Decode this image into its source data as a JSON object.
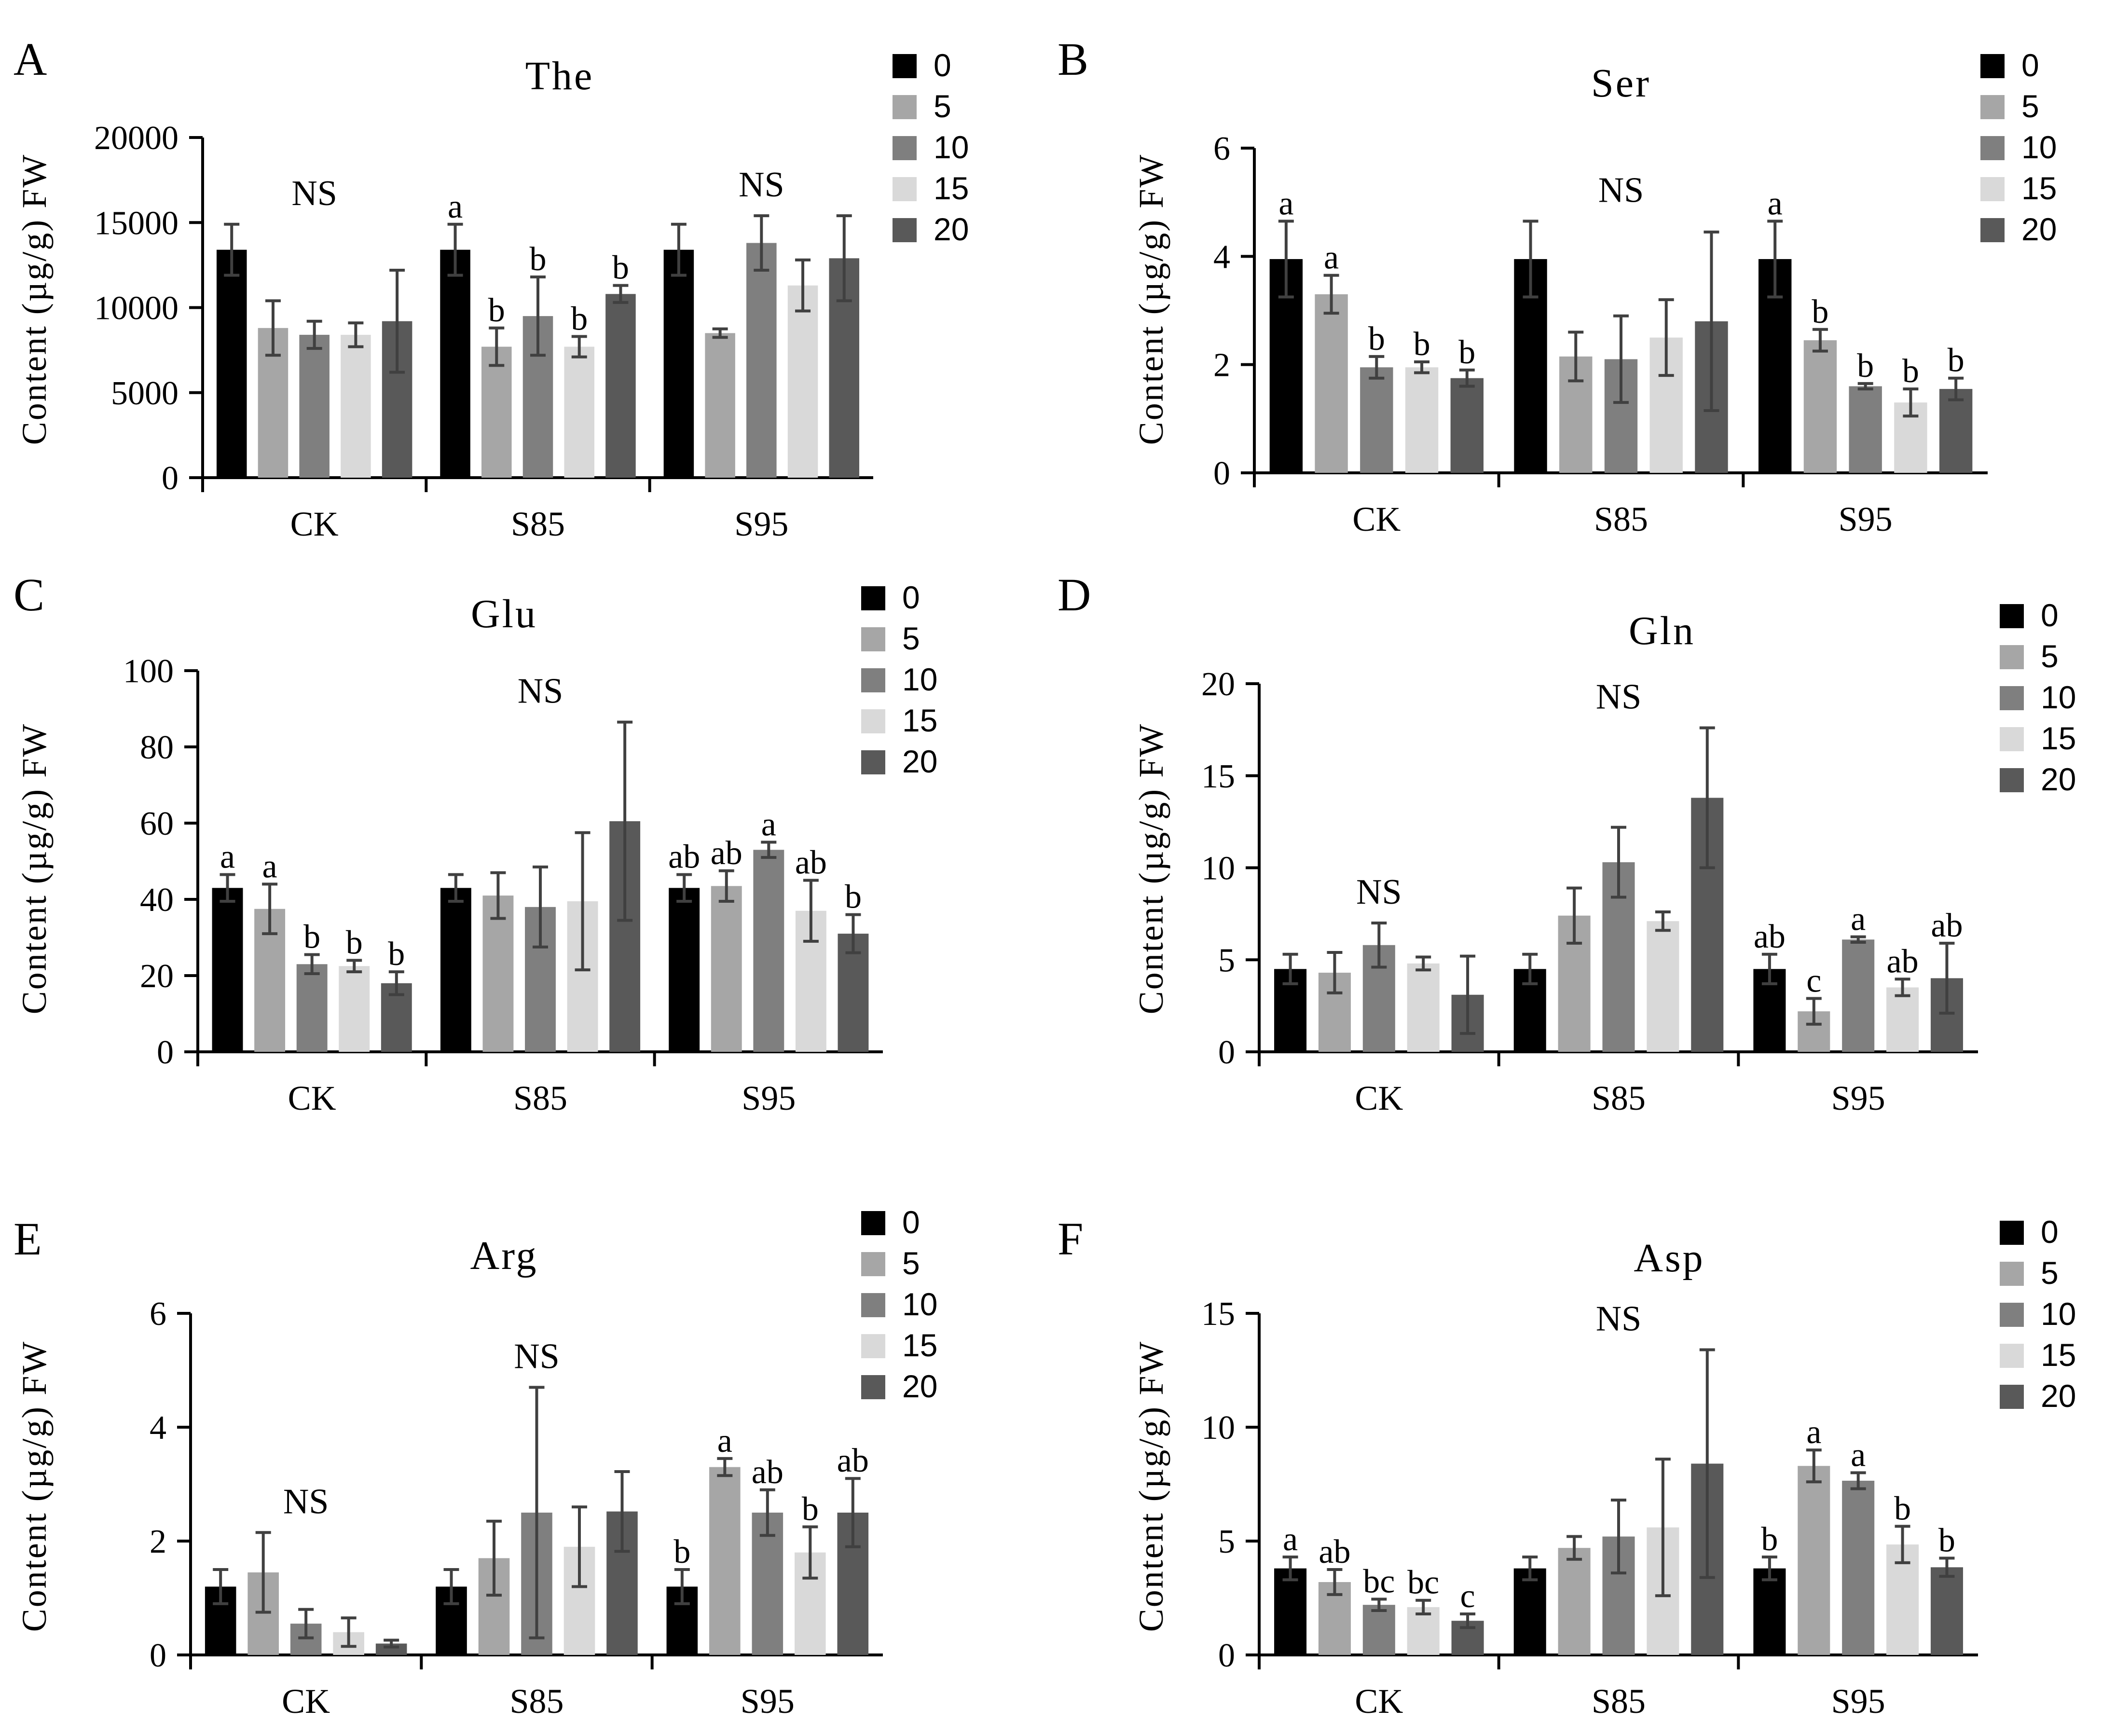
{
  "figure": {
    "group_labels": [
      "CK",
      "S85",
      "S95"
    ],
    "legend_labels": [
      "0",
      "5",
      "10",
      "15",
      "20"
    ],
    "series_colors": [
      "#000000",
      "#a6a6a6",
      "#7f7f7f",
      "#d9d9d9",
      "#595959"
    ],
    "error_bar_color": "#404040",
    "ylabel": "Content (µg/g) FW"
  },
  "chart_data": [
    {
      "panel": "A",
      "type": "bar",
      "title": "The",
      "ylabel": "Content (µg/g) FW",
      "ylim": [
        0,
        20000
      ],
      "yticks": [
        "0",
        "5000",
        "10000",
        "15000",
        "20000"
      ],
      "categories": [
        "CK",
        "S85",
        "S95"
      ],
      "series": [
        {
          "name": "0",
          "values": [
            13400,
            13400,
            13400
          ],
          "errors": [
            1500,
            1500,
            1500
          ]
        },
        {
          "name": "5",
          "values": [
            8800,
            7700,
            8500
          ],
          "errors": [
            1600,
            1100,
            250
          ]
        },
        {
          "name": "10",
          "values": [
            8400,
            9500,
            13800
          ],
          "errors": [
            800,
            2300,
            1600
          ]
        },
        {
          "name": "15",
          "values": [
            8400,
            7700,
            11300
          ],
          "errors": [
            700,
            600,
            1500
          ]
        },
        {
          "name": "20",
          "values": [
            9200,
            10800,
            12900
          ],
          "errors": [
            3000,
            500,
            2500
          ]
        }
      ],
      "labels": [
        [
          "",
          "",
          "",
          "",
          ""
        ],
        [
          "a",
          "b",
          "b",
          "b",
          "b"
        ],
        [
          "",
          "",
          "",
          "",
          ""
        ]
      ],
      "ns": [
        "NS",
        "",
        "NS"
      ]
    },
    {
      "panel": "B",
      "type": "bar",
      "title": "Ser",
      "ylabel": "Content (µg/g) FW",
      "ylim": [
        0,
        6
      ],
      "yticks": [
        "0",
        "2",
        "4",
        "6"
      ],
      "categories": [
        "CK",
        "S85",
        "S95"
      ],
      "series": [
        {
          "name": "0",
          "values": [
            3.95,
            3.95,
            3.95
          ],
          "errors": [
            0.7,
            0.7,
            0.7
          ]
        },
        {
          "name": "5",
          "values": [
            3.3,
            2.15,
            2.45
          ],
          "errors": [
            0.35,
            0.45,
            0.2
          ]
        },
        {
          "name": "10",
          "values": [
            1.95,
            2.1,
            1.6
          ],
          "errors": [
            0.2,
            0.8,
            0.05
          ]
        },
        {
          "name": "15",
          "values": [
            1.95,
            2.5,
            1.3
          ],
          "errors": [
            0.1,
            0.7,
            0.25
          ]
        },
        {
          "name": "20",
          "values": [
            1.75,
            2.8,
            1.55
          ],
          "errors": [
            0.15,
            1.65,
            0.2
          ]
        }
      ],
      "labels": [
        [
          "a",
          "a",
          "b",
          "b",
          "b"
        ],
        [
          "",
          "",
          "",
          "",
          ""
        ],
        [
          "a",
          "b",
          "b",
          "b",
          "b"
        ]
      ],
      "ns": [
        "",
        "NS",
        ""
      ]
    },
    {
      "panel": "C",
      "type": "bar",
      "title": "Glu",
      "ylabel": "Content (µg/g) FW",
      "ylim": [
        0,
        100
      ],
      "yticks": [
        "0",
        "20",
        "40",
        "60",
        "80",
        "100"
      ],
      "categories": [
        "CK",
        "S85",
        "S95"
      ],
      "series": [
        {
          "name": "0",
          "values": [
            43,
            43,
            43
          ],
          "errors": [
            3.5,
            3.5,
            3.5
          ]
        },
        {
          "name": "5",
          "values": [
            37.5,
            41,
            43.5
          ],
          "errors": [
            6.5,
            6,
            4
          ]
        },
        {
          "name": "10",
          "values": [
            23,
            38,
            53
          ],
          "errors": [
            2.5,
            10.5,
            2
          ]
        },
        {
          "name": "15",
          "values": [
            22.5,
            39.5,
            37
          ],
          "errors": [
            1.5,
            18,
            8
          ]
        },
        {
          "name": "20",
          "values": [
            18,
            60.5,
            31
          ],
          "errors": [
            3,
            26,
            5
          ]
        }
      ],
      "labels": [
        [
          "a",
          "a",
          "b",
          "b",
          "b"
        ],
        [
          "",
          "",
          "",
          "",
          ""
        ],
        [
          "ab",
          "ab",
          "a",
          "ab",
          "b"
        ]
      ],
      "ns": [
        "",
        "NS",
        ""
      ]
    },
    {
      "panel": "D",
      "type": "bar",
      "title": "Gln",
      "ylabel": "Content (µg/g) FW",
      "ylim": [
        0,
        20
      ],
      "yticks": [
        "0",
        "5",
        "10",
        "15",
        "20"
      ],
      "categories": [
        "CK",
        "S85",
        "S95"
      ],
      "series": [
        {
          "name": "0",
          "values": [
            4.5,
            4.5,
            4.5
          ],
          "errors": [
            0.8,
            0.8,
            0.8
          ]
        },
        {
          "name": "5",
          "values": [
            4.3,
            7.4,
            2.2
          ],
          "errors": [
            1.1,
            1.5,
            0.7
          ]
        },
        {
          "name": "10",
          "values": [
            5.8,
            10.3,
            6.1
          ],
          "errors": [
            1.2,
            1.9,
            0.15
          ]
        },
        {
          "name": "15",
          "values": [
            4.8,
            7.1,
            3.5
          ],
          "errors": [
            0.35,
            0.5,
            0.45
          ]
        },
        {
          "name": "20",
          "values": [
            3.1,
            13.8,
            4.0
          ],
          "errors": [
            2.1,
            3.8,
            1.9
          ]
        }
      ],
      "labels": [
        [
          "",
          "",
          "",
          "",
          ""
        ],
        [
          "",
          "",
          "",
          "",
          ""
        ],
        [
          "ab",
          "c",
          "a",
          "ab",
          "ab"
        ]
      ],
      "ns": [
        "NS",
        "NS",
        ""
      ]
    },
    {
      "panel": "E",
      "type": "bar",
      "title": "Arg",
      "ylabel": "Content (µg/g) FW",
      "ylim": [
        0,
        6
      ],
      "yticks": [
        "0",
        "2",
        "4",
        "6"
      ],
      "categories": [
        "CK",
        "S85",
        "S95"
      ],
      "series": [
        {
          "name": "0",
          "values": [
            1.2,
            1.2,
            1.2
          ],
          "errors": [
            0.3,
            0.3,
            0.3
          ]
        },
        {
          "name": "5",
          "values": [
            1.45,
            1.7,
            3.3
          ],
          "errors": [
            0.7,
            0.65,
            0.15
          ]
        },
        {
          "name": "10",
          "values": [
            0.55,
            2.5,
            2.5
          ],
          "errors": [
            0.25,
            2.2,
            0.4
          ]
        },
        {
          "name": "15",
          "values": [
            0.4,
            1.9,
            1.8
          ],
          "errors": [
            0.25,
            0.7,
            0.45
          ]
        },
        {
          "name": "20",
          "values": [
            0.2,
            2.52,
            2.5
          ],
          "errors": [
            0.06,
            0.7,
            0.6
          ]
        }
      ],
      "labels": [
        [
          "",
          "",
          "",
          "",
          ""
        ],
        [
          "",
          "",
          "",
          "",
          ""
        ],
        [
          "b",
          "a",
          "ab",
          "b",
          "ab"
        ]
      ],
      "ns": [
        "NS",
        "NS",
        ""
      ]
    },
    {
      "panel": "F",
      "type": "bar",
      "title": "Asp",
      "ylabel": "Content (µg/g) FW",
      "ylim": [
        0,
        15
      ],
      "yticks": [
        "0",
        "5",
        "10",
        "15"
      ],
      "categories": [
        "CK",
        "S85",
        "S95"
      ],
      "series": [
        {
          "name": "0",
          "values": [
            3.8,
            3.8,
            3.8
          ],
          "errors": [
            0.5,
            0.5,
            0.5
          ]
        },
        {
          "name": "5",
          "values": [
            3.2,
            4.7,
            8.3
          ],
          "errors": [
            0.55,
            0.5,
            0.7
          ]
        },
        {
          "name": "10",
          "values": [
            2.2,
            5.2,
            7.65
          ],
          "errors": [
            0.25,
            1.6,
            0.35
          ]
        },
        {
          "name": "15",
          "values": [
            2.1,
            5.6,
            4.85
          ],
          "errors": [
            0.3,
            3.0,
            0.8
          ]
        },
        {
          "name": "20",
          "values": [
            1.5,
            8.4,
            3.85
          ],
          "errors": [
            0.3,
            5.0,
            0.4
          ]
        }
      ],
      "labels": [
        [
          "a",
          "ab",
          "bc",
          "bc",
          "c"
        ],
        [
          "",
          "",
          "",
          "",
          ""
        ],
        [
          "b",
          "a",
          "a",
          "b",
          "b"
        ]
      ],
      "ns": [
        "",
        "NS",
        ""
      ]
    }
  ]
}
